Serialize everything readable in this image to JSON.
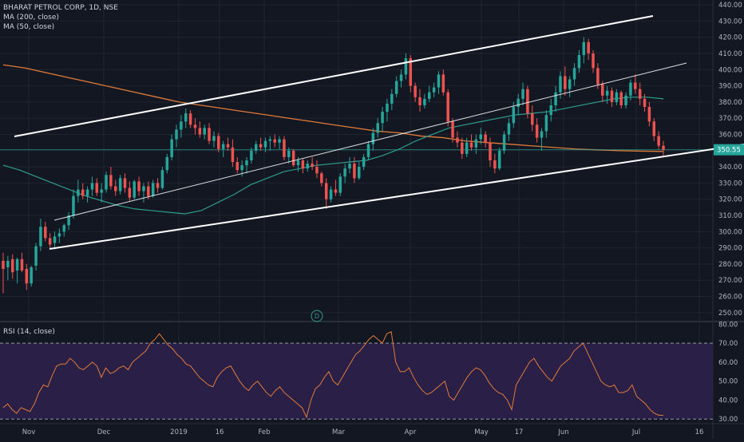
{
  "title": "BHARAT PETROL CORP, 1D, NSE",
  "indicators": [
    "MA (200, close)",
    "MA (50, close)"
  ],
  "rsi_label": "RSI (14, close)",
  "price_badge": "350.55",
  "event_marker": "D",
  "colors": {
    "background": "#131722",
    "grid": "#1f2430",
    "axis_text": "#b2b5be",
    "up": "#26a69a",
    "down": "#ef5350",
    "ma200": "#e07b39",
    "ma50": "#2e9c8f",
    "trendline": "#ffffff",
    "rsi_band": "#2a1f46",
    "rsi_line": "#e07b39",
    "price_line": "#26a69a"
  },
  "chart_data": [
    {
      "type": "candlestick",
      "title": "BHARAT PETROL CORP, 1D, NSE",
      "x_tick_labels": [
        "Nov",
        "Dec",
        "2019",
        "16",
        "Feb",
        "Mar",
        "Apr",
        "May",
        "17",
        "Jun",
        "Jul",
        "16"
      ],
      "y_tick_labels": [
        "250.00",
        "260.00",
        "270.00",
        "280.00",
        "290.00",
        "300.00",
        "310.00",
        "320.00",
        "330.00",
        "340.00",
        "350.00",
        "360.00",
        "370.00",
        "380.00",
        "390.00",
        "400.00",
        "410.00",
        "420.00",
        "430.00",
        "440.00"
      ],
      "ylim": [
        245,
        443
      ],
      "last_price": 350.55,
      "grid": true,
      "candles": [
        {
          "o": 282,
          "h": 287,
          "l": 262,
          "c": 277
        },
        {
          "o": 278,
          "h": 285,
          "l": 270,
          "c": 282
        },
        {
          "o": 283,
          "h": 286,
          "l": 271,
          "c": 275
        },
        {
          "o": 276,
          "h": 284,
          "l": 268,
          "c": 283
        },
        {
          "o": 283,
          "h": 287,
          "l": 275,
          "c": 276
        },
        {
          "o": 277,
          "h": 280,
          "l": 264,
          "c": 268
        },
        {
          "o": 268,
          "h": 279,
          "l": 266,
          "c": 278
        },
        {
          "o": 279,
          "h": 293,
          "l": 276,
          "c": 291
        },
        {
          "o": 291,
          "h": 308,
          "l": 288,
          "c": 303
        },
        {
          "o": 303,
          "h": 306,
          "l": 294,
          "c": 296
        },
        {
          "o": 296,
          "h": 299,
          "l": 290,
          "c": 292
        },
        {
          "o": 293,
          "h": 300,
          "l": 289,
          "c": 297
        },
        {
          "o": 297,
          "h": 302,
          "l": 293,
          "c": 299
        },
        {
          "o": 300,
          "h": 305,
          "l": 297,
          "c": 304
        },
        {
          "o": 304,
          "h": 312,
          "l": 301,
          "c": 310
        },
        {
          "o": 310,
          "h": 326,
          "l": 308,
          "c": 322
        },
        {
          "o": 322,
          "h": 332,
          "l": 318,
          "c": 326
        },
        {
          "o": 326,
          "h": 330,
          "l": 320,
          "c": 322
        },
        {
          "o": 322,
          "h": 328,
          "l": 318,
          "c": 326
        },
        {
          "o": 326,
          "h": 334,
          "l": 322,
          "c": 330
        },
        {
          "o": 330,
          "h": 333,
          "l": 322,
          "c": 324
        },
        {
          "o": 324,
          "h": 330,
          "l": 318,
          "c": 326
        },
        {
          "o": 326,
          "h": 337,
          "l": 324,
          "c": 335
        },
        {
          "o": 335,
          "h": 340,
          "l": 326,
          "c": 328
        },
        {
          "o": 328,
          "h": 332,
          "l": 322,
          "c": 325
        },
        {
          "o": 325,
          "h": 335,
          "l": 323,
          "c": 333
        },
        {
          "o": 333,
          "h": 336,
          "l": 324,
          "c": 327
        },
        {
          "o": 327,
          "h": 331,
          "l": 319,
          "c": 321
        },
        {
          "o": 321,
          "h": 332,
          "l": 320,
          "c": 331
        },
        {
          "o": 331,
          "h": 334,
          "l": 322,
          "c": 325
        },
        {
          "o": 325,
          "h": 330,
          "l": 318,
          "c": 328
        },
        {
          "o": 328,
          "h": 331,
          "l": 320,
          "c": 322
        },
        {
          "o": 322,
          "h": 332,
          "l": 321,
          "c": 330
        },
        {
          "o": 330,
          "h": 333,
          "l": 324,
          "c": 327
        },
        {
          "o": 327,
          "h": 340,
          "l": 326,
          "c": 338
        },
        {
          "o": 338,
          "h": 348,
          "l": 336,
          "c": 346
        },
        {
          "o": 346,
          "h": 360,
          "l": 344,
          "c": 357
        },
        {
          "o": 357,
          "h": 366,
          "l": 352,
          "c": 363
        },
        {
          "o": 363,
          "h": 372,
          "l": 358,
          "c": 368
        },
        {
          "o": 368,
          "h": 376,
          "l": 364,
          "c": 373
        },
        {
          "o": 373,
          "h": 375,
          "l": 364,
          "c": 366
        },
        {
          "o": 366,
          "h": 370,
          "l": 360,
          "c": 364
        },
        {
          "o": 364,
          "h": 368,
          "l": 358,
          "c": 360
        },
        {
          "o": 360,
          "h": 366,
          "l": 357,
          "c": 364
        },
        {
          "o": 364,
          "h": 367,
          "l": 354,
          "c": 356
        },
        {
          "o": 356,
          "h": 362,
          "l": 352,
          "c": 359
        },
        {
          "o": 359,
          "h": 361,
          "l": 349,
          "c": 351
        },
        {
          "o": 351,
          "h": 356,
          "l": 346,
          "c": 354
        },
        {
          "o": 354,
          "h": 358,
          "l": 350,
          "c": 352
        },
        {
          "o": 352,
          "h": 357,
          "l": 340,
          "c": 343
        },
        {
          "o": 343,
          "h": 346,
          "l": 336,
          "c": 338
        },
        {
          "o": 338,
          "h": 344,
          "l": 334,
          "c": 341
        },
        {
          "o": 341,
          "h": 346,
          "l": 336,
          "c": 344
        },
        {
          "o": 344,
          "h": 352,
          "l": 342,
          "c": 350
        },
        {
          "o": 350,
          "h": 356,
          "l": 348,
          "c": 354
        },
        {
          "o": 354,
          "h": 358,
          "l": 350,
          "c": 352
        },
        {
          "o": 352,
          "h": 358,
          "l": 349,
          "c": 356
        },
        {
          "o": 356,
          "h": 359,
          "l": 350,
          "c": 357
        },
        {
          "o": 357,
          "h": 360,
          "l": 352,
          "c": 355
        },
        {
          "o": 355,
          "h": 359,
          "l": 351,
          "c": 357
        },
        {
          "o": 357,
          "h": 359,
          "l": 344,
          "c": 346
        },
        {
          "o": 346,
          "h": 352,
          "l": 342,
          "c": 350
        },
        {
          "o": 350,
          "h": 351,
          "l": 340,
          "c": 341
        },
        {
          "o": 341,
          "h": 346,
          "l": 337,
          "c": 344
        },
        {
          "o": 344,
          "h": 345,
          "l": 336,
          "c": 339
        },
        {
          "o": 339,
          "h": 344,
          "l": 337,
          "c": 342
        },
        {
          "o": 342,
          "h": 346,
          "l": 338,
          "c": 340
        },
        {
          "o": 340,
          "h": 344,
          "l": 333,
          "c": 336
        },
        {
          "o": 336,
          "h": 337,
          "l": 328,
          "c": 330
        },
        {
          "o": 330,
          "h": 333,
          "l": 314,
          "c": 320
        },
        {
          "o": 320,
          "h": 328,
          "l": 318,
          "c": 326
        },
        {
          "o": 326,
          "h": 332,
          "l": 322,
          "c": 324
        },
        {
          "o": 324,
          "h": 336,
          "l": 322,
          "c": 334
        },
        {
          "o": 334,
          "h": 342,
          "l": 330,
          "c": 339
        },
        {
          "o": 339,
          "h": 346,
          "l": 336,
          "c": 342
        },
        {
          "o": 342,
          "h": 346,
          "l": 330,
          "c": 333
        },
        {
          "o": 333,
          "h": 343,
          "l": 332,
          "c": 340
        },
        {
          "o": 340,
          "h": 348,
          "l": 338,
          "c": 346
        },
        {
          "o": 346,
          "h": 356,
          "l": 344,
          "c": 354
        },
        {
          "o": 354,
          "h": 364,
          "l": 350,
          "c": 361
        },
        {
          "o": 361,
          "h": 370,
          "l": 358,
          "c": 367
        },
        {
          "o": 367,
          "h": 377,
          "l": 362,
          "c": 374
        },
        {
          "o": 374,
          "h": 382,
          "l": 368,
          "c": 379
        },
        {
          "o": 379,
          "h": 388,
          "l": 375,
          "c": 385
        },
        {
          "o": 385,
          "h": 396,
          "l": 383,
          "c": 393
        },
        {
          "o": 393,
          "h": 400,
          "l": 389,
          "c": 397
        },
        {
          "o": 397,
          "h": 410,
          "l": 394,
          "c": 407
        },
        {
          "o": 407,
          "h": 409,
          "l": 386,
          "c": 390
        },
        {
          "o": 390,
          "h": 392,
          "l": 380,
          "c": 383
        },
        {
          "o": 383,
          "h": 388,
          "l": 374,
          "c": 378
        },
        {
          "o": 378,
          "h": 385,
          "l": 376,
          "c": 382
        },
        {
          "o": 382,
          "h": 390,
          "l": 380,
          "c": 386
        },
        {
          "o": 386,
          "h": 392,
          "l": 383,
          "c": 389
        },
        {
          "o": 389,
          "h": 399,
          "l": 385,
          "c": 397
        },
        {
          "o": 397,
          "h": 400,
          "l": 384,
          "c": 386
        },
        {
          "o": 386,
          "h": 388,
          "l": 365,
          "c": 368
        },
        {
          "o": 368,
          "h": 370,
          "l": 355,
          "c": 358
        },
        {
          "o": 358,
          "h": 362,
          "l": 352,
          "c": 355
        },
        {
          "o": 355,
          "h": 358,
          "l": 345,
          "c": 348
        },
        {
          "o": 348,
          "h": 358,
          "l": 346,
          "c": 355
        },
        {
          "o": 355,
          "h": 360,
          "l": 350,
          "c": 352
        },
        {
          "o": 352,
          "h": 360,
          "l": 348,
          "c": 357
        },
        {
          "o": 357,
          "h": 364,
          "l": 354,
          "c": 360
        },
        {
          "o": 360,
          "h": 362,
          "l": 352,
          "c": 355
        },
        {
          "o": 355,
          "h": 358,
          "l": 340,
          "c": 344
        },
        {
          "o": 344,
          "h": 348,
          "l": 336,
          "c": 339
        },
        {
          "o": 339,
          "h": 352,
          "l": 338,
          "c": 350
        },
        {
          "o": 350,
          "h": 362,
          "l": 348,
          "c": 360
        },
        {
          "o": 360,
          "h": 370,
          "l": 356,
          "c": 367
        },
        {
          "o": 367,
          "h": 380,
          "l": 364,
          "c": 377
        },
        {
          "o": 377,
          "h": 385,
          "l": 372,
          "c": 382
        },
        {
          "o": 382,
          "h": 392,
          "l": 378,
          "c": 388
        },
        {
          "o": 388,
          "h": 390,
          "l": 370,
          "c": 373
        },
        {
          "o": 373,
          "h": 378,
          "l": 362,
          "c": 366
        },
        {
          "o": 366,
          "h": 370,
          "l": 355,
          "c": 358
        },
        {
          "o": 358,
          "h": 364,
          "l": 350,
          "c": 362
        },
        {
          "o": 362,
          "h": 375,
          "l": 358,
          "c": 372
        },
        {
          "o": 372,
          "h": 382,
          "l": 368,
          "c": 378
        },
        {
          "o": 378,
          "h": 390,
          "l": 374,
          "c": 386
        },
        {
          "o": 386,
          "h": 399,
          "l": 382,
          "c": 396
        },
        {
          "o": 396,
          "h": 402,
          "l": 384,
          "c": 388
        },
        {
          "o": 388,
          "h": 396,
          "l": 383,
          "c": 394
        },
        {
          "o": 394,
          "h": 404,
          "l": 390,
          "c": 401
        },
        {
          "o": 401,
          "h": 412,
          "l": 398,
          "c": 409
        },
        {
          "o": 409,
          "h": 420,
          "l": 404,
          "c": 417
        },
        {
          "o": 417,
          "h": 419,
          "l": 406,
          "c": 410
        },
        {
          "o": 410,
          "h": 412,
          "l": 398,
          "c": 401
        },
        {
          "o": 401,
          "h": 404,
          "l": 388,
          "c": 391
        },
        {
          "o": 391,
          "h": 393,
          "l": 380,
          "c": 384
        },
        {
          "o": 384,
          "h": 390,
          "l": 379,
          "c": 387
        },
        {
          "o": 387,
          "h": 389,
          "l": 377,
          "c": 380
        },
        {
          "o": 380,
          "h": 388,
          "l": 378,
          "c": 386
        },
        {
          "o": 386,
          "h": 387,
          "l": 376,
          "c": 378
        },
        {
          "o": 378,
          "h": 386,
          "l": 376,
          "c": 384
        },
        {
          "o": 384,
          "h": 394,
          "l": 381,
          "c": 392
        },
        {
          "o": 392,
          "h": 397,
          "l": 385,
          "c": 388
        },
        {
          "o": 388,
          "h": 392,
          "l": 378,
          "c": 382
        },
        {
          "o": 382,
          "h": 385,
          "l": 374,
          "c": 377
        },
        {
          "o": 377,
          "h": 380,
          "l": 365,
          "c": 368
        },
        {
          "o": 368,
          "h": 370,
          "l": 356,
          "c": 359
        },
        {
          "o": 359,
          "h": 362,
          "l": 351,
          "c": 353
        },
        {
          "o": 353,
          "h": 356,
          "l": 347,
          "c": 350.55
        }
      ],
      "ma200": [
        403,
        401,
        398,
        395,
        392,
        389,
        386,
        383,
        380,
        378,
        376,
        374,
        372,
        370,
        368,
        366,
        364,
        362,
        361,
        359,
        358,
        356,
        355,
        354,
        353,
        352,
        351,
        350.5,
        350,
        349.7,
        349.5
      ],
      "ma50": [
        341,
        338,
        334,
        330,
        326,
        322,
        319,
        316,
        314,
        313,
        312,
        311,
        313,
        318,
        323,
        329,
        333,
        337,
        339,
        341,
        342,
        343,
        344,
        347,
        351,
        356,
        360,
        364,
        366,
        368,
        370,
        372,
        373,
        374,
        376,
        378,
        380,
        382,
        383,
        383,
        382
      ]
    },
    {
      "type": "line",
      "title": "RSI (14, close)",
      "y_tick_labels": [
        "30.00",
        "40.00",
        "50.00",
        "60.00",
        "70.00",
        "80.00"
      ],
      "ylim": [
        28,
        81
      ],
      "overbought": 70,
      "oversold": 30,
      "series": [
        {
          "values": [
            36,
            38,
            35,
            33,
            36,
            35,
            34,
            38,
            44,
            48,
            47,
            53,
            58,
            59,
            59,
            62,
            60,
            57,
            56,
            58,
            60,
            58,
            52,
            57,
            54,
            55,
            57,
            58,
            56,
            60,
            62,
            64,
            66,
            70,
            72,
            75,
            72,
            69,
            67,
            64,
            62,
            59,
            58,
            55,
            52,
            50,
            48,
            47,
            52,
            55,
            57,
            58,
            54,
            50,
            47,
            45,
            48,
            50,
            47,
            44,
            42,
            45,
            47,
            44,
            42,
            40,
            38,
            36,
            31,
            40,
            46,
            48,
            52,
            55,
            50,
            48,
            52,
            56,
            60,
            64,
            66,
            69,
            72,
            74,
            72,
            70,
            75,
            76,
            60,
            55,
            55,
            57,
            52,
            48,
            45,
            43,
            44,
            46,
            48,
            50,
            42,
            40,
            44,
            48,
            52,
            55,
            57,
            56,
            53,
            49,
            46,
            44,
            43,
            40,
            35,
            48,
            52,
            56,
            60,
            62,
            58,
            55,
            52,
            50,
            54,
            58,
            60,
            62,
            66,
            68,
            70,
            65,
            60,
            55,
            50,
            48,
            47,
            48,
            44,
            44,
            45,
            48,
            42,
            40,
            38,
            35,
            33,
            32,
            32
          ]
        }
      ]
    }
  ]
}
